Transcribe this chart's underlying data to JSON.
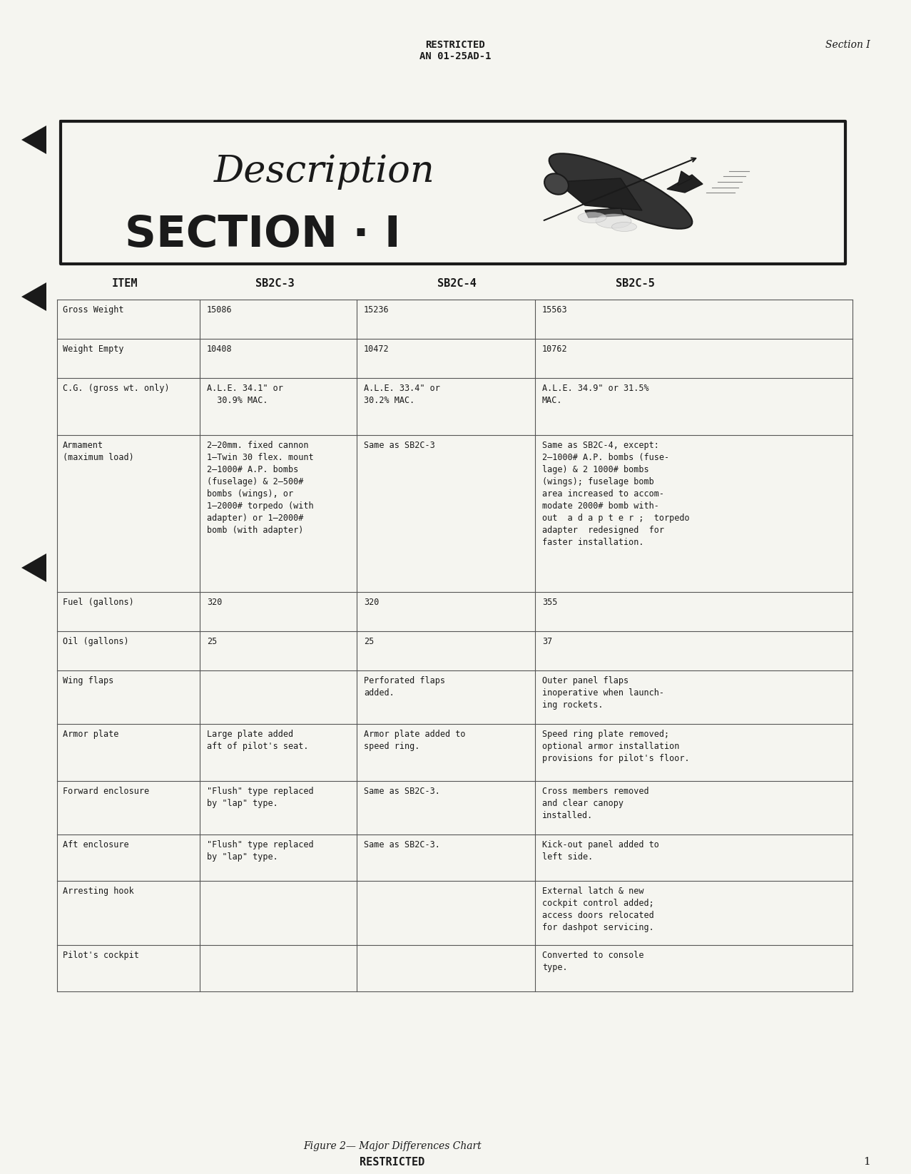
{
  "page_bg": "#f5f5f0",
  "header_restricted": "RESTRICTED",
  "header_doc": "AN 01-25AD-1",
  "header_section": "Section I",
  "section_title_line1": "Description",
  "section_title_line2": "SECTION · I",
  "footer_caption": "Figure 2— Major Differences Chart",
  "footer_restricted": "RESTRICTED",
  "footer_page": "1",
  "col_headers": [
    "ITEM",
    "SB2C-3",
    "SB2C-4",
    "SB2C-5"
  ],
  "rows": [
    {
      "item": "Gross Weight",
      "sb2c3": "15086",
      "sb2c4": "15236",
      "sb2c5": "15563"
    },
    {
      "item": "Weight Empty",
      "sb2c3": "10408",
      "sb2c4": "10472",
      "sb2c5": "10762"
    },
    {
      "item": "C.G. (gross wt. only)",
      "sb2c3": "A.L.E. 34.1\" or\n  30.9% MAC.",
      "sb2c4": "A.L.E. 33.4\" or\n30.2% MAC.",
      "sb2c5": "A.L.E. 34.9\" or 31.5%\nMAC."
    },
    {
      "item": "Armament\n(maximum load)",
      "sb2c3": "2—20mm. fixed cannon\n1—Twin 30 flex. mount\n2—1000# A.P. bombs\n(fuselage) & 2—500#\nbombs (wings), or\n1—2000# torpedo (with\nadapter) or 1—2000#\nbomb (with adapter)",
      "sb2c4": "Same as SB2C-3",
      "sb2c5": "Same as SB2C-4, except:\n2—1000# A.P. bombs (fuse-\nlage) & 2 1000# bombs\n(wings); fuselage bomb\narea increased to accom-\nmodate 2000# bomb with-\nout  a d a p t e r ;  torpedo\nadapter  redesigned  for\nfaster installation."
    },
    {
      "item": "Fuel (gallons)",
      "sb2c3": "320",
      "sb2c4": "320",
      "sb2c5": "355"
    },
    {
      "item": "Oil (gallons)",
      "sb2c3": "25",
      "sb2c4": "25",
      "sb2c5": "37"
    },
    {
      "item": "Wing flaps",
      "sb2c3": "",
      "sb2c4": "Perforated flaps\nadded.",
      "sb2c5": "Outer panel flaps\ninoperative when launch-\ning rockets."
    },
    {
      "item": "Armor plate",
      "sb2c3": "Large plate added\naft of pilot's seat.",
      "sb2c4": "Armor plate added to\nspeed ring.",
      "sb2c5": "Speed ring plate removed;\noptional armor installation\nprovisions for pilot's floor."
    },
    {
      "item": "Forward enclosure",
      "sb2c3": "\"Flush\" type replaced\nby \"lap\" type.",
      "sb2c4": "Same as SB2C-3.",
      "sb2c5": "Cross members removed\nand clear canopy\ninstalled."
    },
    {
      "item": "Aft enclosure",
      "sb2c3": "\"Flush\" type replaced\nby \"lap\" type.",
      "sb2c4": "Same as SB2C-3.",
      "sb2c5": "Kick-out panel added to\nleft side."
    },
    {
      "item": "Arresting hook",
      "sb2c3": "",
      "sb2c4": "",
      "sb2c5": "External latch & new\ncockpit control added;\naccess doors relocated\nfor dashpot servicing."
    },
    {
      "item": "Pilot's cockpit",
      "sb2c3": "",
      "sb2c4": "",
      "sb2c5": "Converted to console\ntype."
    }
  ]
}
